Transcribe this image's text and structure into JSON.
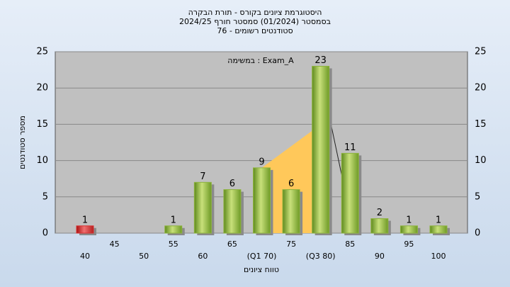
{
  "chart_data": {
    "type": "bar",
    "title": "היסטוגרמת ציונים בקורס - תורת הבקרה",
    "subtitle": "בסמסטר (01/2024) סמסטר חורף 2024/25",
    "subtitle2": "סטודנטים רשומים - 76",
    "annotation": "במשימה : Exam_A",
    "y_label": "מספר סטודנטים",
    "x_label": "טווח ציונים",
    "categories": [
      "40",
      "45",
      "50",
      "55",
      "60",
      "65",
      "(Q1 70)",
      "75",
      "(Q3 80)",
      "85",
      "90",
      "95",
      "100"
    ],
    "values": [
      1,
      0,
      0,
      1,
      7,
      6,
      9,
      6,
      23,
      11,
      2,
      1,
      1
    ],
    "colors": [
      "#d92f2f",
      "#8db33c",
      "#8db33c",
      "#8db33c",
      "#8db33c",
      "#8db33c",
      "#8db33c",
      "#8db33c",
      "#8db33c",
      "#8db33c",
      "#8db33c",
      "#8db33c",
      "#8db33c"
    ],
    "ylim": [
      0,
      25
    ],
    "yticks": [
      0,
      5,
      10,
      15,
      20,
      25
    ],
    "grid": true
  }
}
